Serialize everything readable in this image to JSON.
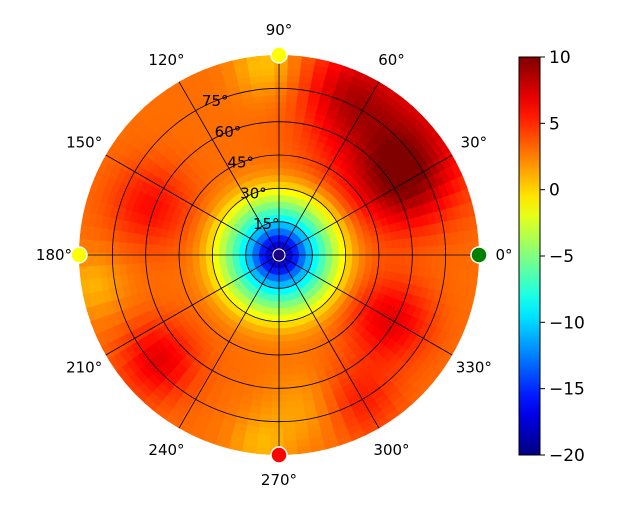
{
  "chart_data": {
    "type": "heatmap",
    "projection": "polar",
    "theta_unit": "degrees",
    "theta_ticks": [
      0,
      30,
      60,
      90,
      120,
      150,
      180,
      210,
      240,
      270,
      300,
      330
    ],
    "theta_tick_labels": [
      "0°",
      "30°",
      "60°",
      "90°",
      "120°",
      "150°",
      "180°",
      "210°",
      "240°",
      "270°",
      "300°",
      "330°"
    ],
    "r_range": [
      0,
      90
    ],
    "r_ticks": [
      15,
      30,
      45,
      60,
      75
    ],
    "r_tick_labels": [
      "15°",
      "30°",
      "45°",
      "60°",
      "75°"
    ],
    "r_label_angle_deg": 112.5,
    "grid": true,
    "colormap": "jet",
    "clim": [
      -20,
      10
    ],
    "colorbar": {
      "ticks": [
        10,
        5,
        0,
        -5,
        -10,
        -15,
        -20
      ],
      "tick_labels": [
        "10",
        "5",
        "0",
        "−5",
        "−10",
        "−15",
        "−20"
      ]
    },
    "field": {
      "baseline": 3.0,
      "center_dip": {
        "amplitude": -21,
        "sigma_deg": 11
      },
      "ring_dip": {
        "amplitude": -5.5,
        "radius_deg": 21,
        "sigma_deg": 9
      },
      "hotspots": [
        {
          "theta": 45,
          "r": 72,
          "value": 5.2,
          "sigma": 22
        },
        {
          "theta": 30,
          "r": 65,
          "value": 4.0,
          "sigma": 14
        },
        {
          "theta": 68,
          "r": 80,
          "value": 3.5,
          "sigma": 14
        },
        {
          "theta": 330,
          "r": 58,
          "value": 4.0,
          "sigma": 13
        },
        {
          "theta": 222,
          "r": 72,
          "value": 4.0,
          "sigma": 12
        },
        {
          "theta": 160,
          "r": 62,
          "value": 3.0,
          "sigma": 13
        },
        {
          "theta": 300,
          "r": 75,
          "value": 2.5,
          "sigma": 12
        }
      ],
      "coolspots": [
        {
          "theta": 95,
          "r": 86,
          "value": -2.5,
          "sigma": 10
        },
        {
          "theta": 265,
          "r": 86,
          "value": -2.0,
          "sigma": 10
        },
        {
          "theta": 280,
          "r": 70,
          "value": -1.5,
          "sigma": 12
        },
        {
          "theta": 190,
          "r": 85,
          "value": -2.0,
          "sigma": 10
        }
      ]
    },
    "markers": [
      {
        "name": "marker-0deg",
        "theta": 0,
        "r": 90,
        "color": "#008000"
      },
      {
        "name": "marker-90deg",
        "theta": 90,
        "r": 90,
        "color": "#ffff00"
      },
      {
        "name": "marker-180deg",
        "theta": 180,
        "r": 90,
        "color": "#ffff00"
      },
      {
        "name": "marker-270deg",
        "theta": 270,
        "r": 90,
        "color": "#ff0000"
      }
    ],
    "title": "",
    "xlabel": "",
    "ylabel": ""
  }
}
